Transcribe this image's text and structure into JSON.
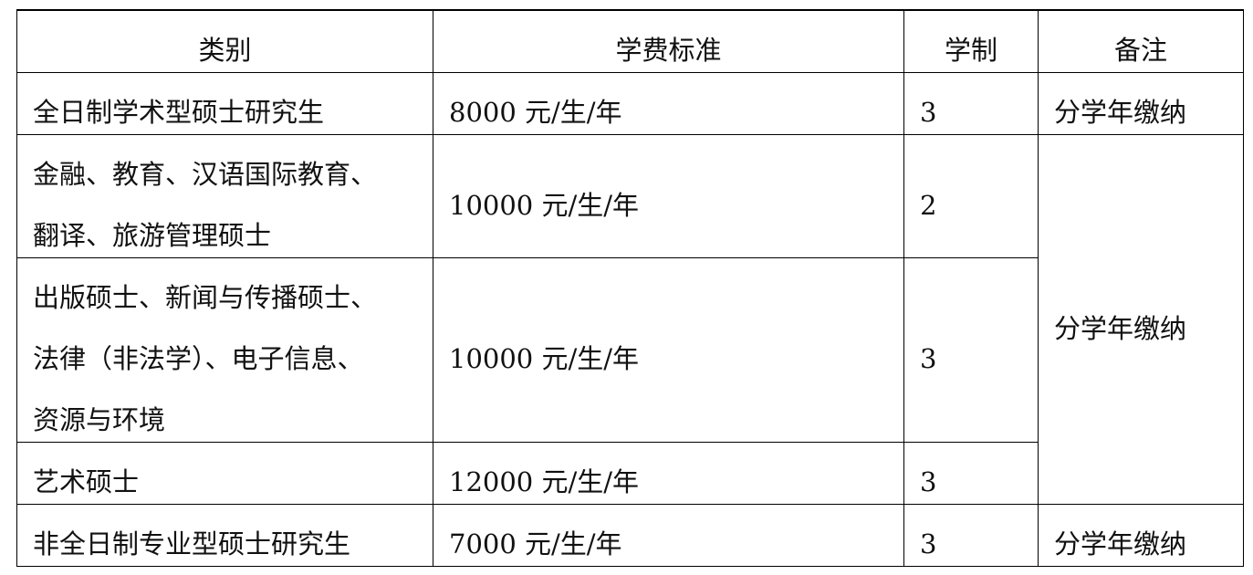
{
  "table": {
    "headers": [
      "类别",
      "学费标准",
      "学制",
      "备注"
    ],
    "rows": [
      {
        "category": "全日制学术型硕士研究生",
        "fee": "8000 元/生/年",
        "years": "3",
        "note": "分学年缴纳"
      },
      {
        "category": "金融、教育、汉语国际教育、翻译、旅游管理硕士",
        "category_lines": [
          "金融、教育、汉语国际教育、",
          "翻译、旅游管理硕士"
        ],
        "fee": "10000 元/生/年",
        "years": "2",
        "note": "分学年缴纳"
      },
      {
        "category": "出版硕士、新闻与传播硕士、法律（非法学）、电子信息、资源与环境",
        "category_lines": [
          "出版硕士、新闻与传播硕士、",
          "法律（非法学）、电子信息、",
          "资源与环境"
        ],
        "fee": "10000 元/生/年",
        "years": "3"
      },
      {
        "category": "艺术硕士",
        "fee": "12000 元/生/年",
        "years": "3"
      },
      {
        "category": "非全日制专业型硕士研究生",
        "fee": "7000 元/生/年",
        "years": "3",
        "note": "分学年缴纳"
      }
    ]
  }
}
